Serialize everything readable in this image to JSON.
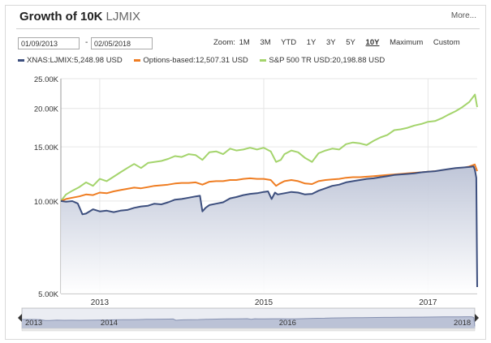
{
  "header": {
    "title": "Growth of 10K",
    "ticker": "LJMIX",
    "more_label": "More..."
  },
  "controls": {
    "start_date": "01/09/2013",
    "end_date": "02/05/2018",
    "separator": "-",
    "zoom_label": "Zoom:",
    "zoom_options": [
      "1M",
      "3M",
      "YTD",
      "1Y",
      "3Y",
      "5Y",
      "10Y",
      "Maximum",
      "Custom"
    ],
    "active_zoom": "10Y"
  },
  "colors": {
    "fund": "#3d4f7e",
    "options": "#ef7d22",
    "sp500": "#a4d46c",
    "area_top": "#bcc3d6",
    "grid": "#e6e6e6",
    "axis": "#999999"
  },
  "legend": [
    {
      "label": "XNAS:LJMIX:5,248.98 USD",
      "color": "#3d4f7e"
    },
    {
      "label": "Options-based:12,507.31 USD",
      "color": "#ef7d22"
    },
    {
      "label": "S&P 500 TR USD:20,198.88 USD",
      "color": "#a4d46c"
    }
  ],
  "chart_data": {
    "type": "line",
    "y_scale": "log",
    "ylim": [
      5000,
      25000
    ],
    "xlim": [
      "2013-01-09",
      "2018-02-05"
    ],
    "y_ticks": [
      5000,
      10000,
      15000,
      20000,
      25000
    ],
    "y_tick_labels": [
      "5.00K",
      "10.00K",
      "15.00K",
      "20.00K",
      "25.00K"
    ],
    "x_tick_labels": [
      {
        "label": "2013",
        "date": "2013-07-01"
      },
      {
        "label": "2015",
        "date": "2015-07-01"
      },
      {
        "label": "2017",
        "date": "2017-07-01"
      }
    ],
    "navigator_labels": [
      {
        "label": "2013",
        "date": "2013-01-09"
      },
      {
        "label": "2014",
        "date": "2014-01-01"
      },
      {
        "label": "2016",
        "date": "2016-01-01"
      },
      {
        "label": "2018",
        "date": "2018-01-20"
      }
    ],
    "grid": true,
    "series": [
      {
        "name": "XNAS:LJMIX",
        "key": "fund",
        "filled": true,
        "points": [
          [
            "2013-01-09",
            10000
          ],
          [
            "2013-02-01",
            9950
          ],
          [
            "2013-03-01",
            9990
          ],
          [
            "2013-03-25",
            9820
          ],
          [
            "2013-04-15",
            9050
          ],
          [
            "2013-05-01",
            9100
          ],
          [
            "2013-06-01",
            9400
          ],
          [
            "2013-07-01",
            9250
          ],
          [
            "2013-08-01",
            9300
          ],
          [
            "2013-09-01",
            9200
          ],
          [
            "2013-10-01",
            9300
          ],
          [
            "2013-11-01",
            9350
          ],
          [
            "2013-12-01",
            9500
          ],
          [
            "2014-01-01",
            9600
          ],
          [
            "2014-02-01",
            9650
          ],
          [
            "2014-03-01",
            9800
          ],
          [
            "2014-04-01",
            9750
          ],
          [
            "2014-05-01",
            9900
          ],
          [
            "2014-06-01",
            10100
          ],
          [
            "2014-07-01",
            10150
          ],
          [
            "2014-08-01",
            10250
          ],
          [
            "2014-09-01",
            10350
          ],
          [
            "2014-09-20",
            10400
          ],
          [
            "2014-10-01",
            9250
          ],
          [
            "2014-10-15",
            9500
          ],
          [
            "2014-11-01",
            9700
          ],
          [
            "2014-12-01",
            9800
          ],
          [
            "2015-01-01",
            9900
          ],
          [
            "2015-02-01",
            10200
          ],
          [
            "2015-03-01",
            10300
          ],
          [
            "2015-04-01",
            10450
          ],
          [
            "2015-05-01",
            10550
          ],
          [
            "2015-06-01",
            10600
          ],
          [
            "2015-07-01",
            10700
          ],
          [
            "2015-07-20",
            10750
          ],
          [
            "2015-08-05",
            10150
          ],
          [
            "2015-08-20",
            10650
          ],
          [
            "2015-09-01",
            10500
          ],
          [
            "2015-10-01",
            10600
          ],
          [
            "2015-11-01",
            10700
          ],
          [
            "2015-12-01",
            10650
          ],
          [
            "2016-01-01",
            10500
          ],
          [
            "2016-02-01",
            10550
          ],
          [
            "2016-03-01",
            10800
          ],
          [
            "2016-04-01",
            11000
          ],
          [
            "2016-05-01",
            11200
          ],
          [
            "2016-06-01",
            11300
          ],
          [
            "2016-07-01",
            11500
          ],
          [
            "2016-08-01",
            11600
          ],
          [
            "2016-09-01",
            11700
          ],
          [
            "2016-10-01",
            11800
          ],
          [
            "2016-11-01",
            11850
          ],
          [
            "2016-12-01",
            11950
          ],
          [
            "2017-01-01",
            12050
          ],
          [
            "2017-02-01",
            12150
          ],
          [
            "2017-03-01",
            12200
          ],
          [
            "2017-04-01",
            12250
          ],
          [
            "2017-05-01",
            12300
          ],
          [
            "2017-06-01",
            12400
          ],
          [
            "2017-07-01",
            12450
          ],
          [
            "2017-08-01",
            12500
          ],
          [
            "2017-09-01",
            12600
          ],
          [
            "2017-10-01",
            12700
          ],
          [
            "2017-11-01",
            12800
          ],
          [
            "2017-12-01",
            12850
          ],
          [
            "2018-01-01",
            12900
          ],
          [
            "2018-01-20",
            12950
          ],
          [
            "2018-01-26",
            12600
          ],
          [
            "2018-02-01",
            11900
          ],
          [
            "2018-02-05",
            5249
          ]
        ]
      },
      {
        "name": "Options-based",
        "key": "options",
        "filled": false,
        "points": [
          [
            "2013-01-09",
            10000
          ],
          [
            "2013-02-01",
            10150
          ],
          [
            "2013-03-01",
            10250
          ],
          [
            "2013-04-01",
            10350
          ],
          [
            "2013-05-01",
            10500
          ],
          [
            "2013-06-01",
            10450
          ],
          [
            "2013-07-01",
            10650
          ],
          [
            "2013-08-01",
            10600
          ],
          [
            "2013-09-01",
            10750
          ],
          [
            "2013-10-01",
            10850
          ],
          [
            "2013-11-01",
            10950
          ],
          [
            "2013-12-01",
            11050
          ],
          [
            "2014-01-01",
            11000
          ],
          [
            "2014-02-01",
            11100
          ],
          [
            "2014-03-01",
            11200
          ],
          [
            "2014-04-01",
            11250
          ],
          [
            "2014-05-01",
            11300
          ],
          [
            "2014-06-01",
            11400
          ],
          [
            "2014-07-01",
            11450
          ],
          [
            "2014-08-01",
            11450
          ],
          [
            "2014-09-01",
            11500
          ],
          [
            "2014-10-01",
            11300
          ],
          [
            "2014-11-01",
            11550
          ],
          [
            "2014-12-01",
            11600
          ],
          [
            "2015-01-01",
            11600
          ],
          [
            "2015-02-01",
            11700
          ],
          [
            "2015-03-01",
            11700
          ],
          [
            "2015-04-01",
            11800
          ],
          [
            "2015-05-01",
            11850
          ],
          [
            "2015-06-01",
            11800
          ],
          [
            "2015-07-01",
            11800
          ],
          [
            "2015-08-01",
            11700
          ],
          [
            "2015-08-25",
            11200
          ],
          [
            "2015-09-10",
            11400
          ],
          [
            "2015-10-01",
            11600
          ],
          [
            "2015-11-01",
            11700
          ],
          [
            "2015-12-01",
            11600
          ],
          [
            "2016-01-01",
            11400
          ],
          [
            "2016-02-01",
            11350
          ],
          [
            "2016-03-01",
            11600
          ],
          [
            "2016-04-01",
            11700
          ],
          [
            "2016-05-01",
            11750
          ],
          [
            "2016-06-01",
            11800
          ],
          [
            "2016-07-01",
            11900
          ],
          [
            "2016-08-01",
            11950
          ],
          [
            "2016-09-01",
            11950
          ],
          [
            "2016-10-01",
            12000
          ],
          [
            "2016-11-01",
            12050
          ],
          [
            "2016-12-01",
            12100
          ],
          [
            "2017-01-01",
            12150
          ],
          [
            "2017-02-01",
            12200
          ],
          [
            "2017-03-01",
            12250
          ],
          [
            "2017-04-01",
            12300
          ],
          [
            "2017-05-01",
            12350
          ],
          [
            "2017-06-01",
            12400
          ],
          [
            "2017-07-01",
            12450
          ],
          [
            "2017-08-01",
            12500
          ],
          [
            "2017-09-01",
            12550
          ],
          [
            "2017-10-01",
            12650
          ],
          [
            "2017-11-01",
            12750
          ],
          [
            "2017-12-01",
            12800
          ],
          [
            "2018-01-01",
            12950
          ],
          [
            "2018-01-25",
            13150
          ],
          [
            "2018-02-05",
            12507
          ]
        ]
      },
      {
        "name": "S&P 500 TR USD",
        "key": "sp500",
        "filled": false,
        "points": [
          [
            "2013-01-09",
            10000
          ],
          [
            "2013-02-01",
            10500
          ],
          [
            "2013-03-01",
            10800
          ],
          [
            "2013-04-01",
            11100
          ],
          [
            "2013-05-01",
            11500
          ],
          [
            "2013-06-01",
            11200
          ],
          [
            "2013-07-01",
            11800
          ],
          [
            "2013-08-01",
            11600
          ],
          [
            "2013-09-01",
            12000
          ],
          [
            "2013-10-01",
            12400
          ],
          [
            "2013-11-01",
            12800
          ],
          [
            "2013-12-01",
            13200
          ],
          [
            "2014-01-01",
            12800
          ],
          [
            "2014-02-01",
            13300
          ],
          [
            "2014-03-01",
            13400
          ],
          [
            "2014-04-01",
            13500
          ],
          [
            "2014-05-01",
            13700
          ],
          [
            "2014-06-01",
            14000
          ],
          [
            "2014-07-01",
            13900
          ],
          [
            "2014-08-01",
            14200
          ],
          [
            "2014-09-01",
            14100
          ],
          [
            "2014-10-01",
            13600
          ],
          [
            "2014-11-01",
            14400
          ],
          [
            "2014-12-01",
            14500
          ],
          [
            "2015-01-01",
            14200
          ],
          [
            "2015-02-01",
            14800
          ],
          [
            "2015-03-01",
            14600
          ],
          [
            "2015-04-01",
            14700
          ],
          [
            "2015-05-01",
            14900
          ],
          [
            "2015-06-01",
            14700
          ],
          [
            "2015-07-01",
            14900
          ],
          [
            "2015-08-01",
            14500
          ],
          [
            "2015-08-25",
            13400
          ],
          [
            "2015-09-15",
            13600
          ],
          [
            "2015-10-01",
            14200
          ],
          [
            "2015-11-01",
            14600
          ],
          [
            "2015-12-01",
            14400
          ],
          [
            "2016-01-01",
            13800
          ],
          [
            "2016-02-01",
            13400
          ],
          [
            "2016-03-01",
            14300
          ],
          [
            "2016-04-01",
            14600
          ],
          [
            "2016-05-01",
            14800
          ],
          [
            "2016-06-01",
            14700
          ],
          [
            "2016-07-01",
            15300
          ],
          [
            "2016-08-01",
            15500
          ],
          [
            "2016-09-01",
            15400
          ],
          [
            "2016-10-01",
            15200
          ],
          [
            "2016-11-01",
            15700
          ],
          [
            "2016-12-01",
            16100
          ],
          [
            "2017-01-01",
            16400
          ],
          [
            "2017-02-01",
            17000
          ],
          [
            "2017-03-01",
            17100
          ],
          [
            "2017-04-01",
            17300
          ],
          [
            "2017-05-01",
            17600
          ],
          [
            "2017-06-01",
            17800
          ],
          [
            "2017-07-01",
            18100
          ],
          [
            "2017-08-01",
            18200
          ],
          [
            "2017-09-01",
            18600
          ],
          [
            "2017-10-01",
            19100
          ],
          [
            "2017-11-01",
            19600
          ],
          [
            "2017-12-01",
            20200
          ],
          [
            "2018-01-01",
            21000
          ],
          [
            "2018-01-26",
            22200
          ],
          [
            "2018-02-05",
            20199
          ]
        ]
      }
    ]
  }
}
